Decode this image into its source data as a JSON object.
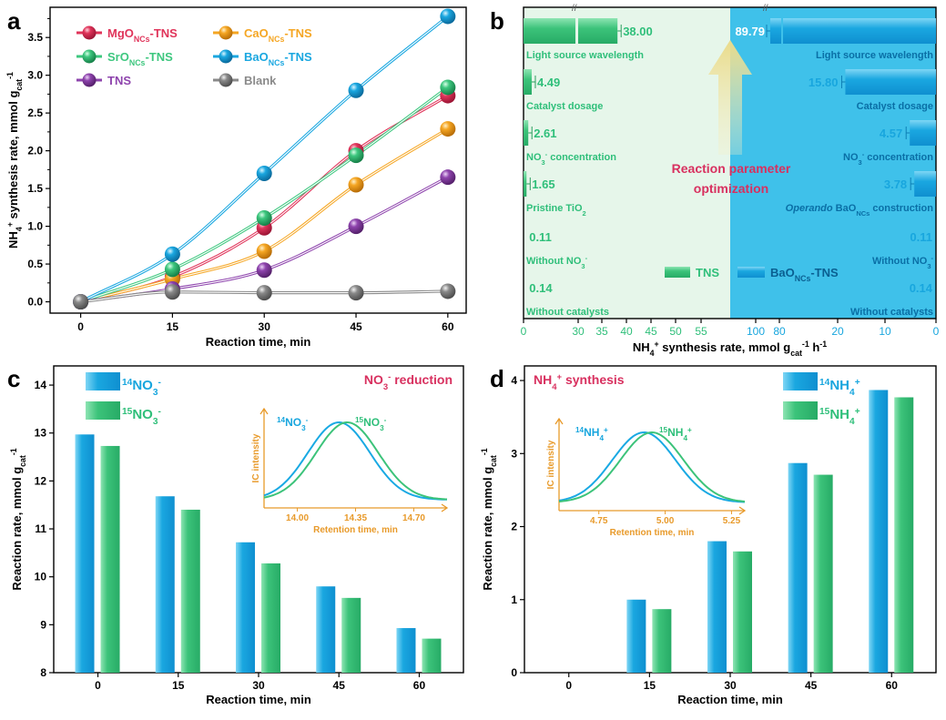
{
  "colors": {
    "mgo": "#e0345a",
    "cao": "#f5a623",
    "sro": "#3ec77f",
    "bao": "#1aa7e0",
    "tns": "#8e44ad",
    "blank": "#8a8a8a",
    "green_bar": "#3cc37a",
    "blue_bar": "#19a9e3",
    "green_bg": "#e6f6ea",
    "blue_bg": "#3fc1ea",
    "ic_label": "#e89a2a",
    "magenta": "#d8305f",
    "tns_text": "#2fbf7a",
    "bao_text": "#18a6de"
  },
  "panel_letters": {
    "a": "a",
    "b": "b",
    "c": "c",
    "d": "d"
  },
  "chart_data": [
    {
      "panel": "a",
      "type": "line",
      "xlabel": "Reaction time, min",
      "ylabel": {
        "main": "NH",
        "sup": "+",
        "pre_sub": "4",
        "rest": " synthesis rate, mmol g",
        "sub": "cat",
        "exp": "-1"
      },
      "x": [
        0,
        15,
        30,
        45,
        60
      ],
      "xlim": [
        -5,
        63
      ],
      "ylim": [
        -0.15,
        3.9
      ],
      "xticks": [
        "0",
        "15",
        "30",
        "45",
        "60"
      ],
      "yticks": [
        "0.0",
        "0.5",
        "1.0",
        "1.5",
        "2.0",
        "2.5",
        "3.0",
        "3.5"
      ],
      "series": [
        {
          "key": "mgo",
          "name": "MgO",
          "sub": "NCs",
          "suffix": "-TNS",
          "values": [
            0,
            0.33,
            0.98,
            2.0,
            2.73
          ]
        },
        {
          "key": "cao",
          "name": "CaO",
          "sub": "NCs",
          "suffix": "-TNS",
          "values": [
            0,
            0.3,
            0.67,
            1.55,
            2.29
          ]
        },
        {
          "key": "sro",
          "name": "SrO",
          "sub": "NCs",
          "suffix": "-TNS",
          "values": [
            0,
            0.43,
            1.11,
            1.94,
            2.84
          ]
        },
        {
          "key": "bao",
          "name": "BaO",
          "sub": "NCs",
          "suffix": "-TNS",
          "values": [
            0,
            0.63,
            1.7,
            2.8,
            3.78
          ]
        },
        {
          "key": "tns",
          "name": "TNS",
          "sub": "",
          "suffix": "",
          "values": [
            0,
            0.17,
            0.42,
            1.0,
            1.65
          ]
        },
        {
          "key": "blank",
          "name": "Blank",
          "sub": "",
          "suffix": "",
          "values": [
            0,
            0.13,
            0.12,
            0.12,
            0.14
          ]
        }
      ]
    },
    {
      "panel": "b",
      "type": "bar",
      "xlabel": {
        "main": "NH",
        "sup": "+",
        "pre_sub": "4",
        "rest": " synthesis rate, mmol g",
        "sub": "cat",
        "exp": "-1",
        "tail": " h",
        "tail_exp": "-1"
      },
      "left_ticks": [
        "0",
        "30",
        "35",
        "40",
        "45",
        "50",
        "55"
      ],
      "right_ticks": [
        "100",
        "80",
        "20",
        "10",
        "0"
      ],
      "annotation": [
        "Reaction parameter",
        "optimization"
      ],
      "legend": {
        "tns": "TNS",
        "bao": "BaO",
        "bao_sub": "NCs",
        "bao_suffix": "-TNS"
      },
      "tns": [
        {
          "label": "Light source wavelength",
          "value": 38.0,
          "text": "38.00"
        },
        {
          "label": "Catalyst dosage",
          "value": 4.49,
          "text": "4.49"
        },
        {
          "label_main": "NO",
          "label_sub": "3",
          "label_sup": "-",
          "label": " concentration",
          "value": 2.61,
          "text": "2.61"
        },
        {
          "label_main": "Pristine TiO",
          "label_sub": "2",
          "label": "",
          "value": 1.65,
          "text": "1.65"
        },
        {
          "label_main": "Without NO",
          "label_sub": "3",
          "label_sup": "-",
          "label": "",
          "value": 0.11,
          "text": "0.11"
        },
        {
          "label": "Without catalysts",
          "value": 0.14,
          "text": "0.14"
        }
      ],
      "bao": [
        {
          "label": "Light source wavelength",
          "value": 89.79,
          "text": "89.79"
        },
        {
          "label": "Catalyst dosage",
          "value": 15.8,
          "text": "15.80"
        },
        {
          "label_main": "NO",
          "label_sub": "3",
          "label_sup": "-",
          "label": " concentration",
          "value": 4.57,
          "text": "4.57"
        },
        {
          "label_it": "Operando",
          "label_main": " BaO",
          "label_sub": "NCs",
          "label": " construction",
          "value": 3.78,
          "text": "3.78"
        },
        {
          "label_main": "Without NO",
          "label_sub": "3",
          "label_sup": "-",
          "label": "",
          "value": 0.11,
          "text": "0.11"
        },
        {
          "label": "Without catalysts",
          "value": 0.14,
          "text": "0.14"
        }
      ]
    },
    {
      "panel": "c",
      "type": "bar",
      "xlabel": "Reaction time, min",
      "ylabel": {
        "main": "Reaction rate, mmol g",
        "sub": "cat",
        "exp": "-1"
      },
      "categories": [
        "0",
        "15",
        "30",
        "45",
        "60"
      ],
      "ylim": [
        8,
        14.4
      ],
      "yticks": [
        "8",
        "9",
        "10",
        "11",
        "12",
        "13",
        "14"
      ],
      "title": {
        "main": "NO",
        "sub": "3",
        "sup": "-",
        "rest": " reduction"
      },
      "series": [
        {
          "name": "NO",
          "iso": "14",
          "sub": "3",
          "sup": "-",
          "values": [
            12.97,
            11.68,
            10.72,
            9.8,
            8.93
          ]
        },
        {
          "name": "NO",
          "iso": "15",
          "sub": "3",
          "sup": "-",
          "values": [
            12.73,
            11.4,
            10.28,
            9.56,
            8.71
          ]
        }
      ],
      "inset": {
        "xlabel": "Retention time, min",
        "ylabel": "IC intensity",
        "xticks": [
          14.0,
          14.35,
          14.7
        ],
        "xtick_labels": [
          "14.00",
          "14.35",
          "14.70"
        ],
        "xlim": [
          13.8,
          14.9
        ],
        "peaks": [
          14.25,
          14.3
        ],
        "label14": {
          "iso": "14",
          "main": "NO",
          "sub": "3",
          "sup": "-"
        },
        "label15": {
          "iso": "15",
          "main": "NO",
          "sub": "3",
          "sup": "-"
        }
      }
    },
    {
      "panel": "d",
      "type": "bar",
      "xlabel": "Reaction time, min",
      "ylabel": {
        "main": "Reaction rate, mmol g",
        "sub": "cat",
        "exp": "-1"
      },
      "categories": [
        "0",
        "15",
        "30",
        "45",
        "60"
      ],
      "ylim": [
        0,
        4.2
      ],
      "yticks": [
        "0",
        "1",
        "2",
        "3",
        "4"
      ],
      "title": {
        "main": "NH",
        "sub": "4",
        "sup": "+",
        "rest": " synthesis"
      },
      "series": [
        {
          "name": "NH",
          "iso": "14",
          "sub": "4",
          "sup": "+",
          "values": [
            0,
            1.0,
            1.8,
            2.87,
            3.87
          ]
        },
        {
          "name": "NH",
          "iso": "15",
          "sub": "4",
          "sup": "+",
          "values": [
            0,
            0.87,
            1.66,
            2.71,
            3.77
          ]
        }
      ],
      "inset": {
        "xlabel": "Retention time, min",
        "ylabel": "IC intensity",
        "xticks": [
          4.75,
          5.0,
          5.25
        ],
        "xtick_labels": [
          "4.75",
          "5.00",
          "5.25"
        ],
        "xlim": [
          4.6,
          5.3
        ],
        "peaks": [
          4.92,
          4.95
        ],
        "label14": {
          "iso": "14",
          "main": "NH",
          "sub": "4",
          "sup": "+"
        },
        "label15": {
          "iso": "15",
          "main": "NH",
          "sub": "4",
          "sup": "+"
        }
      }
    }
  ]
}
